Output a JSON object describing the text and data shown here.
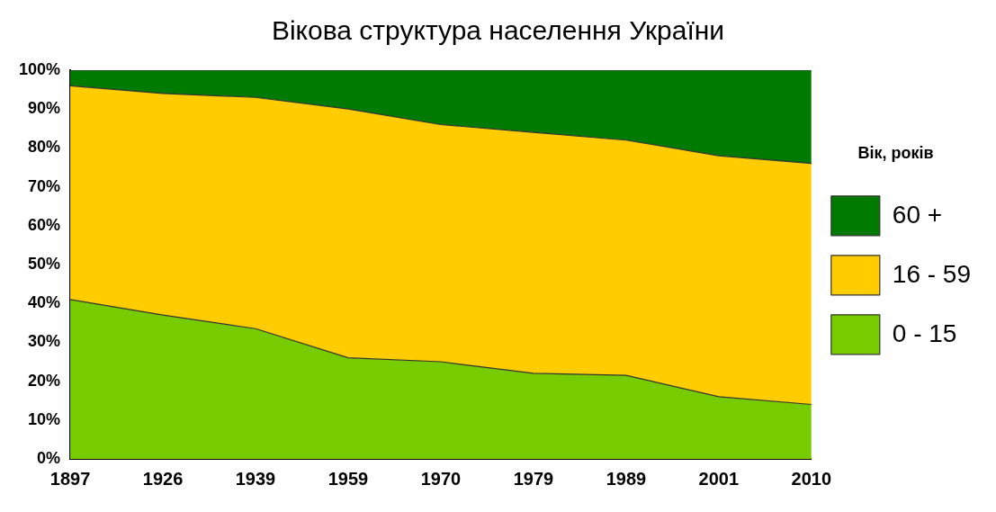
{
  "chart_data": {
    "type": "area",
    "title": "Вікова структура населення України",
    "legend_title": "Вік, років",
    "stacked": true,
    "legend": "right",
    "grid": false,
    "categories": [
      "1897",
      "1926",
      "1939",
      "1959",
      "1970",
      "1979",
      "1989",
      "2001",
      "2010"
    ],
    "series": [
      {
        "name": "0 - 15",
        "color": "#77cc00",
        "values": [
          41,
          37,
          33.5,
          26,
          25,
          22,
          21.5,
          16,
          14
        ]
      },
      {
        "name": "16 - 59",
        "color": "#ffcc00",
        "values": [
          55,
          57,
          59.5,
          64,
          61,
          62,
          60.5,
          62,
          62
        ]
      },
      {
        "name": "60 +",
        "color": "#007a00",
        "values": [
          4,
          6,
          7,
          10,
          14,
          16,
          18,
          22,
          24
        ]
      }
    ],
    "ylim": [
      0,
      100
    ],
    "yticks": [
      {
        "value": 0,
        "label": "0%"
      },
      {
        "value": 10,
        "label": "10%"
      },
      {
        "value": 20,
        "label": "20%"
      },
      {
        "value": 30,
        "label": "30%"
      },
      {
        "value": 40,
        "label": "40%"
      },
      {
        "value": 50,
        "label": "50%"
      },
      {
        "value": 60,
        "label": "60%"
      },
      {
        "value": 70,
        "label": "70%"
      },
      {
        "value": 80,
        "label": "80%"
      },
      {
        "value": 90,
        "label": "90%"
      },
      {
        "value": 100,
        "label": "100%"
      }
    ]
  }
}
